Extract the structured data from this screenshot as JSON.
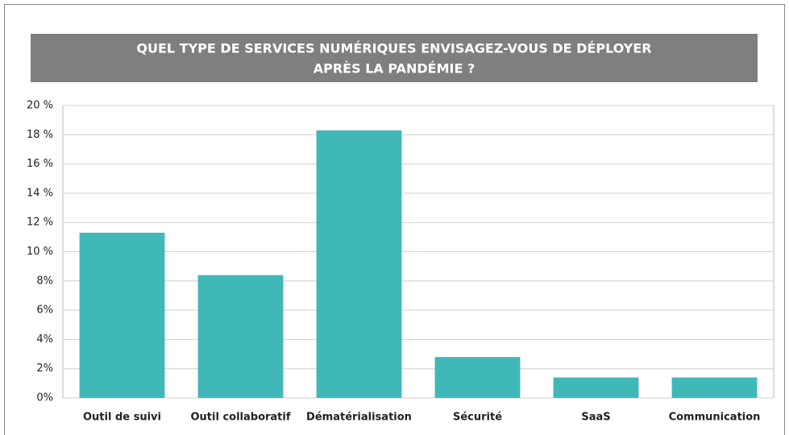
{
  "chart_data": {
    "type": "bar",
    "title": [
      "QUEL TYPE DE SERVICES NUMÉRIQUES ENVISAGEZ-VOUS DE DÉPLOYER",
      "APRÈS LA PANDÉMIE ?"
    ],
    "categories": [
      "Outil de suivi",
      "Outil collaboratif",
      "Dématérialisation",
      "Sécurité",
      "SaaS",
      "Communication"
    ],
    "values": [
      11.3,
      8.4,
      18.3,
      2.8,
      1.4,
      1.4
    ],
    "color": "#40b8b8",
    "ylim": [
      0,
      20
    ],
    "yticks": [
      {
        "value": 0,
        "label": "0%"
      },
      {
        "value": 2,
        "label": "2%"
      },
      {
        "value": 4,
        "label": "4%"
      },
      {
        "value": 6,
        "label": "6%"
      },
      {
        "value": 8,
        "label": "8%"
      },
      {
        "value": 10,
        "label": "10 %"
      },
      {
        "value": 12,
        "label": "12 %"
      },
      {
        "value": 14,
        "label": "14 %"
      },
      {
        "value": 16,
        "label": "16 %"
      },
      {
        "value": 18,
        "label": "18 %"
      },
      {
        "value": 20,
        "label": "20 %"
      }
    ],
    "grid": true
  }
}
